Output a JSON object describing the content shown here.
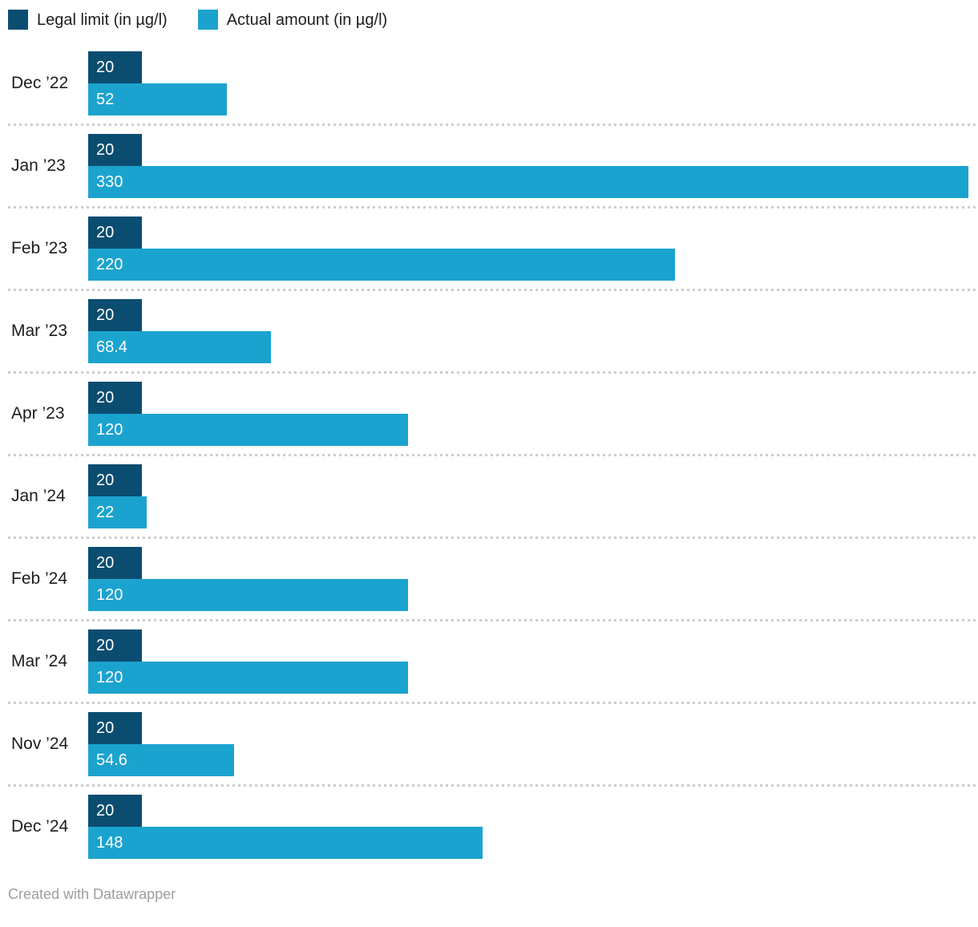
{
  "legend": {
    "items": [
      {
        "label": "Legal limit (in µg/l)",
        "color": "#0b4d70"
      },
      {
        "label": "Actual amount (in µg/l)",
        "color": "#1ba3cf"
      }
    ]
  },
  "footer": {
    "text": "Created with Datawrapper"
  },
  "colors": {
    "legal_bar": "#0b4d70",
    "actual_bar": "#1ba3cf",
    "separator": "#cdcdcd",
    "category_text": "#1d1d1d",
    "value_text": "#ffffff",
    "footer_text": "#9e9e9e"
  },
  "chart_data": {
    "type": "bar",
    "orientation": "horizontal",
    "grouped": true,
    "title": "",
    "xlabel": "",
    "ylabel": "",
    "categories": [
      "Dec ’22",
      "Jan ’23",
      "Feb ’23",
      "Mar ’23",
      "Apr ’23",
      "Jan ’24",
      "Feb ’24",
      "Mar ’24",
      "Nov ’24",
      "Dec ’24"
    ],
    "series": [
      {
        "name": "Legal limit (in µg/l)",
        "values": [
          20,
          20,
          20,
          20,
          20,
          20,
          20,
          20,
          20,
          20
        ]
      },
      {
        "name": "Actual amount (in µg/l)",
        "values": [
          52,
          330,
          220,
          68.4,
          120,
          22,
          120,
          120,
          54.6,
          148
        ]
      }
    ],
    "value_labels_inside_bars": true,
    "xmax": 330,
    "grid": false,
    "legend_position": "top",
    "attribution": "Created with Datawrapper"
  }
}
